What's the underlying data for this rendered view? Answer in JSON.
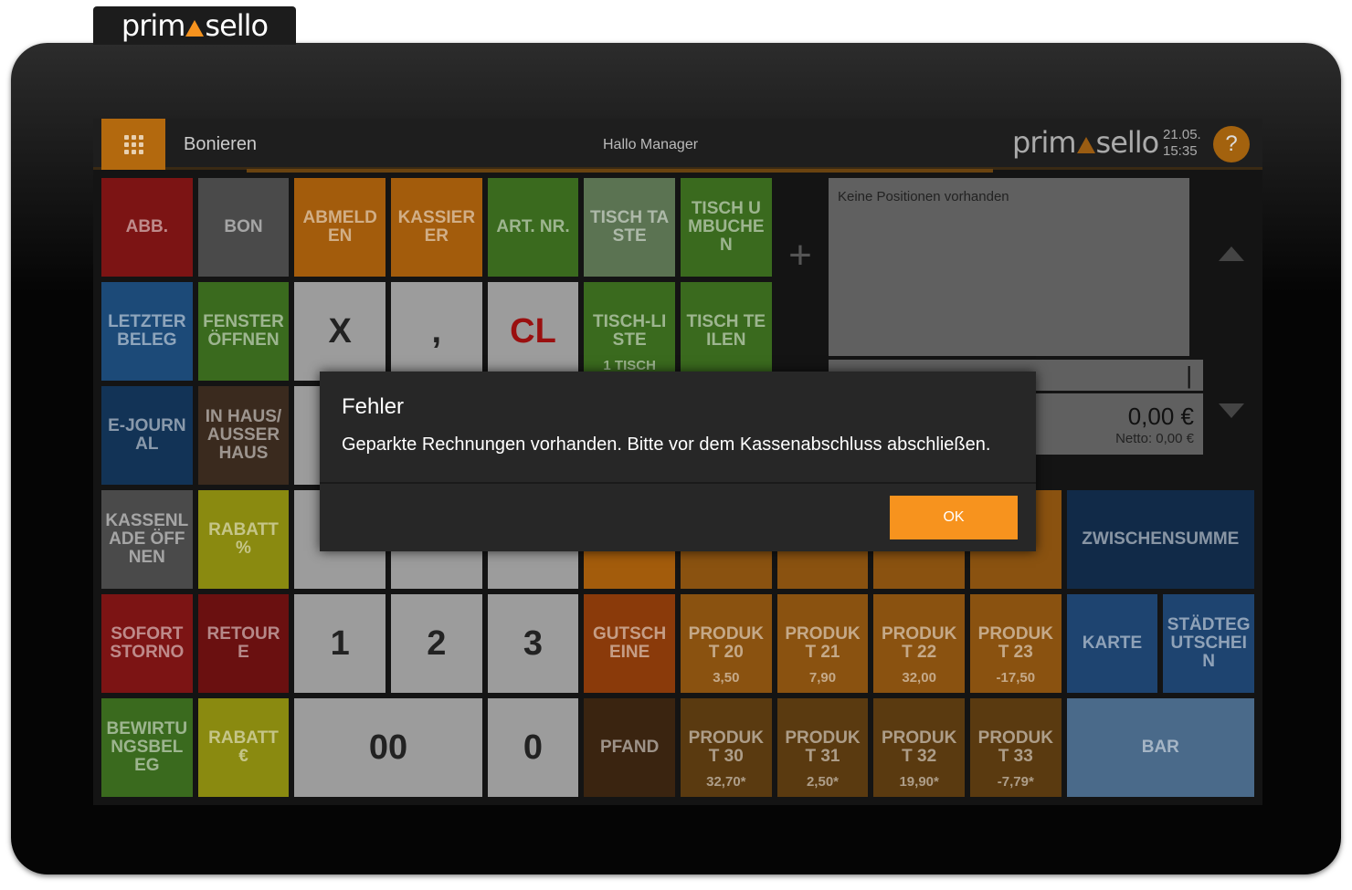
{
  "logo": {
    "left": "prim",
    "right": "sello"
  },
  "header": {
    "title": "Bonieren",
    "greeting": "Hallo Manager",
    "date": "21.05.",
    "time": "15:35",
    "help": "?"
  },
  "keys": [
    {
      "label": "ABB."
    },
    {
      "label": "BON"
    },
    {
      "label": "ABMELDEN"
    },
    {
      "label": "KASSIERER"
    },
    {
      "label": "ART. NR."
    },
    {
      "label": "TISCH TASTE"
    },
    {
      "label": "TISCH UMBUCHEN"
    },
    {
      "label": "LETZTER BELEG"
    },
    {
      "label": "FENSTER ÖFFNEN"
    },
    {
      "label": "X"
    },
    {
      "label": ","
    },
    {
      "label": "CL"
    },
    {
      "label": "TISCH-LISTE",
      "sub": "1 TISCH"
    },
    {
      "label": "TISCH TEILEN"
    },
    {
      "label": "E-JOURNAL"
    },
    {
      "label": "IN HAUS/AUSSER HAUS"
    },
    {
      "label": "KASSENLADE ÖFFNEN"
    },
    {
      "label": "RABATT %"
    },
    {
      "label": "ZWISCHENSUMME"
    },
    {
      "label": "SOFORT STORNO"
    },
    {
      "label": "RETOURE"
    },
    {
      "label": "1"
    },
    {
      "label": "2"
    },
    {
      "label": "3"
    },
    {
      "label": "GUTSCHEINE"
    },
    {
      "label": "PRODUKT 20",
      "sub": "3,50"
    },
    {
      "label": "PRODUKT 21",
      "sub": "7,90"
    },
    {
      "label": "PRODUKT 22",
      "sub": "32,00"
    },
    {
      "label": "PRODUKT 23",
      "sub": "-17,50"
    },
    {
      "label": "KARTE"
    },
    {
      "label": "STÄDTEGUTSCHEIN"
    },
    {
      "label": "BEWIRTUNGSBELEG"
    },
    {
      "label": "RABATT €"
    },
    {
      "label": "00"
    },
    {
      "label": "0"
    },
    {
      "label": "PFAND"
    },
    {
      "label": "PRODUKT 30",
      "sub": "32,70*"
    },
    {
      "label": "PRODUKT 31",
      "sub": "2,50*"
    },
    {
      "label": "PRODUKT 32",
      "sub": "19,90*"
    },
    {
      "label": "PRODUKT 33",
      "sub": "-7,79*"
    },
    {
      "label": "BAR"
    }
  ],
  "receipt": {
    "empty": "Keine Positionen vorhanden",
    "cursor": "|",
    "total": "0,00 €",
    "net": "Netto: 0,00 €"
  },
  "plus": "+",
  "dialog": {
    "title": "Fehler",
    "message": "Geparkte Rechnungen vorhanden. Bitte vor dem Kassenabschluss abschließen.",
    "button": "OK"
  }
}
